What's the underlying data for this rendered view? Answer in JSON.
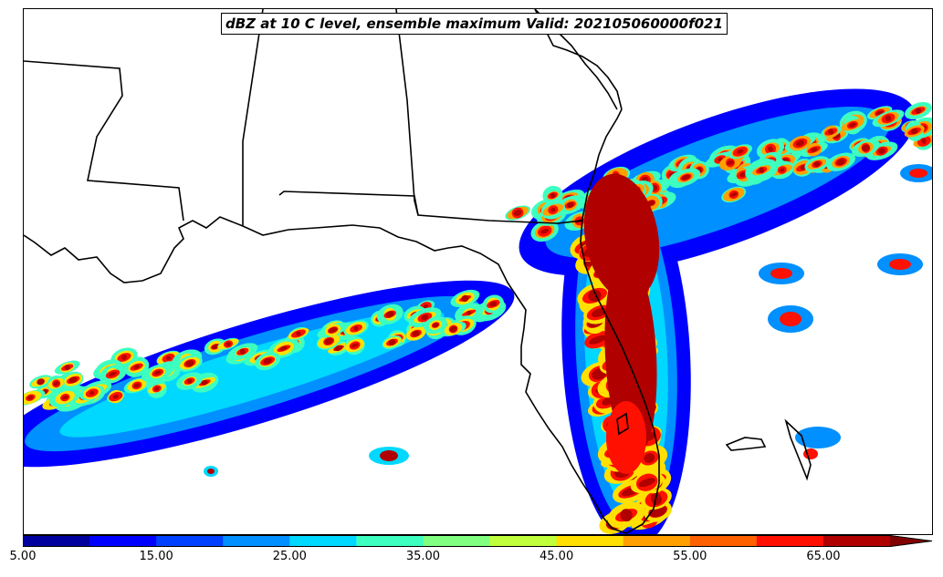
{
  "title": "dBZ at 10 C level, ensemble maximum Valid: 202105060000f021",
  "colorbar": {
    "min": 5,
    "max": 70,
    "step": 5,
    "extend": "max",
    "colors": [
      "#00009f",
      "#0000ff",
      "#0040ff",
      "#0090ff",
      "#00d8ff",
      "#3cffc0",
      "#80ff80",
      "#c0ff3c",
      "#ffe000",
      "#ffa000",
      "#ff6000",
      "#ff1000",
      "#b00000",
      "#800000"
    ],
    "tick_labels": [
      "5.00",
      "15.00",
      "25.00",
      "35.00",
      "45.00",
      "55.00",
      "65.00"
    ]
  },
  "map_style": {
    "coastline_color": "#000000",
    "background": "#ffffff"
  }
}
